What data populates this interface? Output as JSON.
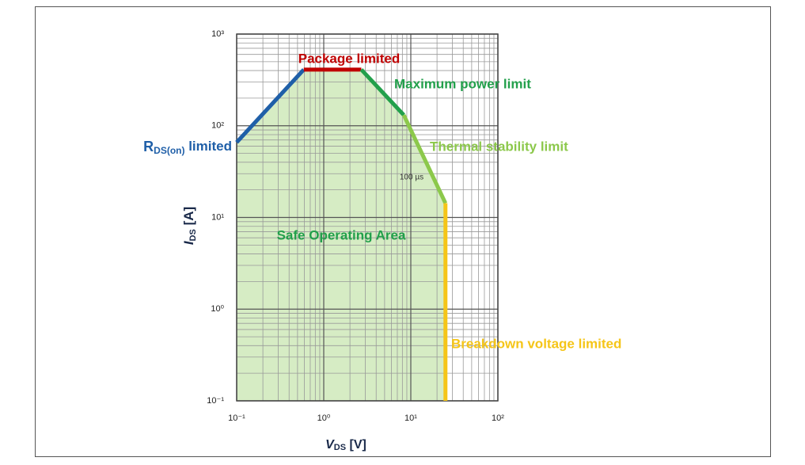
{
  "chart_data": {
    "type": "line",
    "log_x": true,
    "log_y": true,
    "grid": true,
    "minor_grid": true,
    "xlim": [
      0.1,
      100
    ],
    "ylim": [
      0.1,
      1000
    ],
    "xticks": [
      {
        "value": 0.1,
        "label": "10⁻¹"
      },
      {
        "value": 1,
        "label": "10⁰"
      },
      {
        "value": 10,
        "label": "10¹"
      },
      {
        "value": 100,
        "label": "10²"
      }
    ],
    "yticks": [
      {
        "value": 0.1,
        "label": "10⁻¹"
      },
      {
        "value": 1,
        "label": "10⁰"
      },
      {
        "value": 10,
        "label": "10¹"
      },
      {
        "value": 100,
        "label": "10²"
      },
      {
        "value": 1000,
        "label": "10³"
      }
    ],
    "xlabel": {
      "main": "V",
      "sub": "DS",
      "unit": " [V]"
    },
    "ylabel": {
      "main": "I",
      "sub": "DS",
      "unit": " [A]"
    },
    "area_label": "Safe Operating Area",
    "area_color": "#d6ecc4",
    "annotation": "100 µs",
    "series": [
      {
        "name": [
          "R",
          "DS(on)",
          " limited"
        ],
        "color": "#1f5fa8",
        "x": [
          0.1,
          0.59
        ],
        "values": [
          66,
          410
        ]
      },
      {
        "name": "Package limited",
        "color": "#c00000",
        "x": [
          0.59,
          2.7
        ],
        "values": [
          410,
          410
        ]
      },
      {
        "name": "Maximum power limit",
        "color": "#22a04b",
        "x": [
          2.7,
          8.3
        ],
        "values": [
          410,
          131
        ]
      },
      {
        "name": "Thermal stability limit",
        "color": "#8cc84b",
        "x": [
          8.3,
          25
        ],
        "values": [
          131,
          14.3
        ]
      },
      {
        "name": "Breakdown voltage limited",
        "color": "#f5c518",
        "x": [
          25,
          25
        ],
        "values": [
          14.3,
          0.1
        ]
      }
    ]
  }
}
